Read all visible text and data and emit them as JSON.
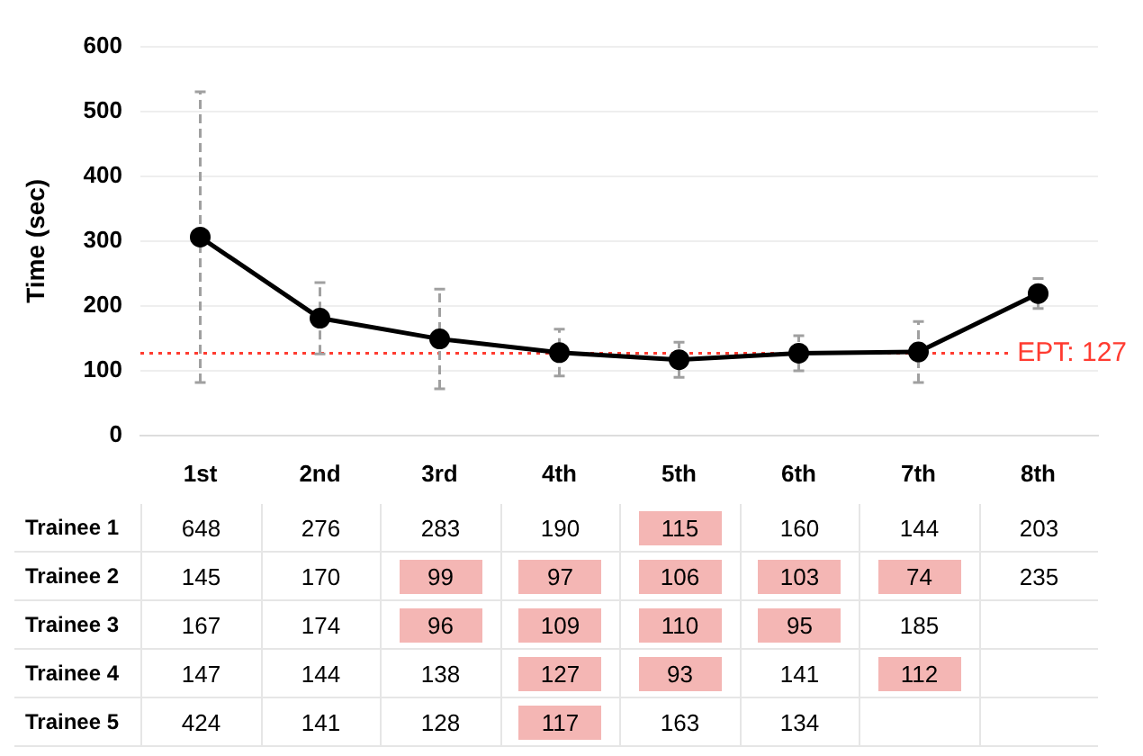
{
  "chart_data": [
    {
      "type": "line",
      "ylabel": "Time (sec)",
      "categories": [
        "1st",
        "2nd",
        "3rd",
        "4th",
        "5th",
        "6th",
        "7th",
        "8th"
      ],
      "series": [
        {
          "color": "#000000",
          "values": [
            306,
            181,
            149,
            128,
            117,
            127,
            129,
            219
          ],
          "errors": [
            224,
            55,
            77,
            36,
            27,
            27,
            47,
            23
          ]
        }
      ],
      "ylim": [
        0,
        600
      ],
      "yticks": [
        0,
        100,
        200,
        300,
        400,
        500,
        600
      ],
      "grid": "y",
      "marker": "circle",
      "line_style": "solid",
      "ref_lines": [
        {
          "axis": "y",
          "value": 127,
          "label": "EPT: 127",
          "color": "#ff3b30",
          "line_style": "dotted"
        }
      ]
    },
    {
      "type": "heatmap",
      "categories": [
        null,
        null,
        null,
        null,
        null,
        null,
        null,
        null
      ],
      "y_categories": [
        "Trainee 1",
        "Trainee 2",
        "Trainee 3",
        "Trainee 4",
        "Trainee 5"
      ],
      "cells": [
        [
          648,
          276,
          283,
          190,
          115,
          160,
          144,
          203
        ],
        [
          145,
          170,
          99,
          97,
          106,
          103,
          74,
          235
        ],
        [
          167,
          174,
          96,
          109,
          110,
          95,
          185,
          null
        ],
        [
          147,
          144,
          138,
          127,
          93,
          141,
          112,
          null
        ],
        [
          424,
          141,
          128,
          117,
          163,
          134,
          null,
          null
        ]
      ],
      "tick_labels": "y",
      "data_labels": true,
      "grid": true
    }
  ]
}
